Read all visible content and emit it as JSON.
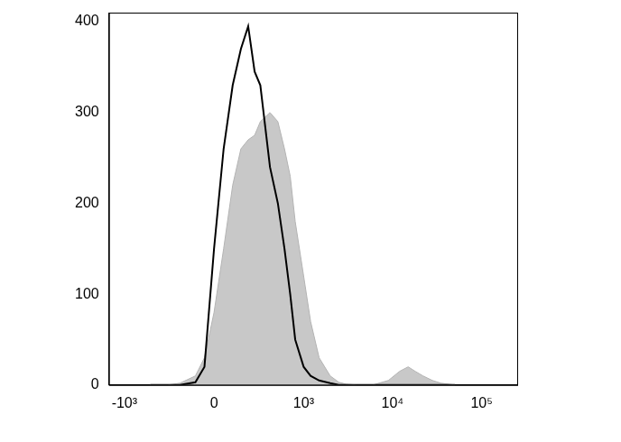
{
  "chart_data": {
    "type": "line",
    "x": [
      -500,
      -300,
      -200,
      -100,
      -50,
      0,
      50,
      100,
      150,
      200,
      250,
      300,
      400,
      500,
      600,
      700,
      800,
      1000,
      1200,
      1500,
      2000,
      2500,
      3000,
      4000,
      6000,
      9000,
      12000,
      15000,
      18000,
      22000,
      28000,
      35000,
      50000
    ],
    "series": [
      {
        "type": "area",
        "color": "#c8c8c8",
        "values": [
          0,
          0,
          2,
          10,
          30,
          80,
          150,
          220,
          260,
          270,
          275,
          290,
          300,
          290,
          260,
          230,
          180,
          120,
          70,
          30,
          10,
          3,
          1,
          0,
          0,
          5,
          15,
          20,
          15,
          10,
          5,
          2,
          0
        ]
      },
      {
        "type": "line",
        "color": "#000000",
        "values": [
          0,
          0,
          0,
          3,
          20,
          150,
          260,
          330,
          370,
          395,
          345,
          330,
          240,
          200,
          150,
          100,
          50,
          20,
          10,
          5,
          2,
          0,
          0,
          0,
          0,
          0,
          0,
          0,
          0,
          0,
          0,
          0,
          0
        ]
      }
    ],
    "xlim": [
      -1500,
      250000
    ],
    "xticks": [
      {
        "value": -1000,
        "label": "-10³"
      },
      0,
      {
        "value": 1000,
        "label": "10³"
      },
      {
        "value": 10000,
        "label": "10⁴"
      },
      {
        "value": 100000,
        "label": "10⁵"
      }
    ],
    "ylim": [
      0,
      410
    ],
    "yticks": [
      0,
      100,
      200,
      300,
      400
    ],
    "grid": false
  }
}
